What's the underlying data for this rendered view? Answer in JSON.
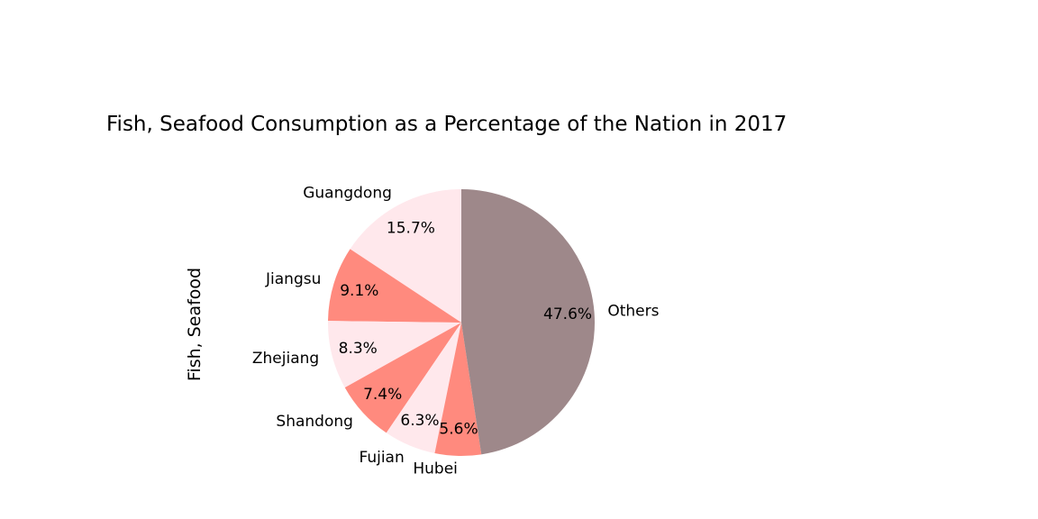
{
  "chart_data": {
    "type": "pie",
    "title": "Fish, Seafood Consumption as a Percentage of the Nation in 2017",
    "ylabel": "Fish, Seafood",
    "start_angle_deg": 90,
    "direction": "counterclockwise",
    "slices": [
      {
        "label": "Guangdong",
        "value": 15.7,
        "pct_label": "15.7%",
        "color": "#FFE8EC"
      },
      {
        "label": "Jiangsu",
        "value": 9.1,
        "pct_label": "9.1%",
        "color": "#FF8A7E"
      },
      {
        "label": "Zhejiang",
        "value": 8.3,
        "pct_label": "8.3%",
        "color": "#FFE8EC"
      },
      {
        "label": "Shandong",
        "value": 7.4,
        "pct_label": "7.4%",
        "color": "#FF8A7E"
      },
      {
        "label": "Fujian",
        "value": 6.3,
        "pct_label": "6.3%",
        "color": "#FFE8EC"
      },
      {
        "label": "Hubei",
        "value": 5.6,
        "pct_label": "5.6%",
        "color": "#FF8A7E"
      },
      {
        "label": "Others",
        "value": 47.6,
        "pct_label": "47.6%",
        "color": "#9E888A"
      }
    ]
  }
}
